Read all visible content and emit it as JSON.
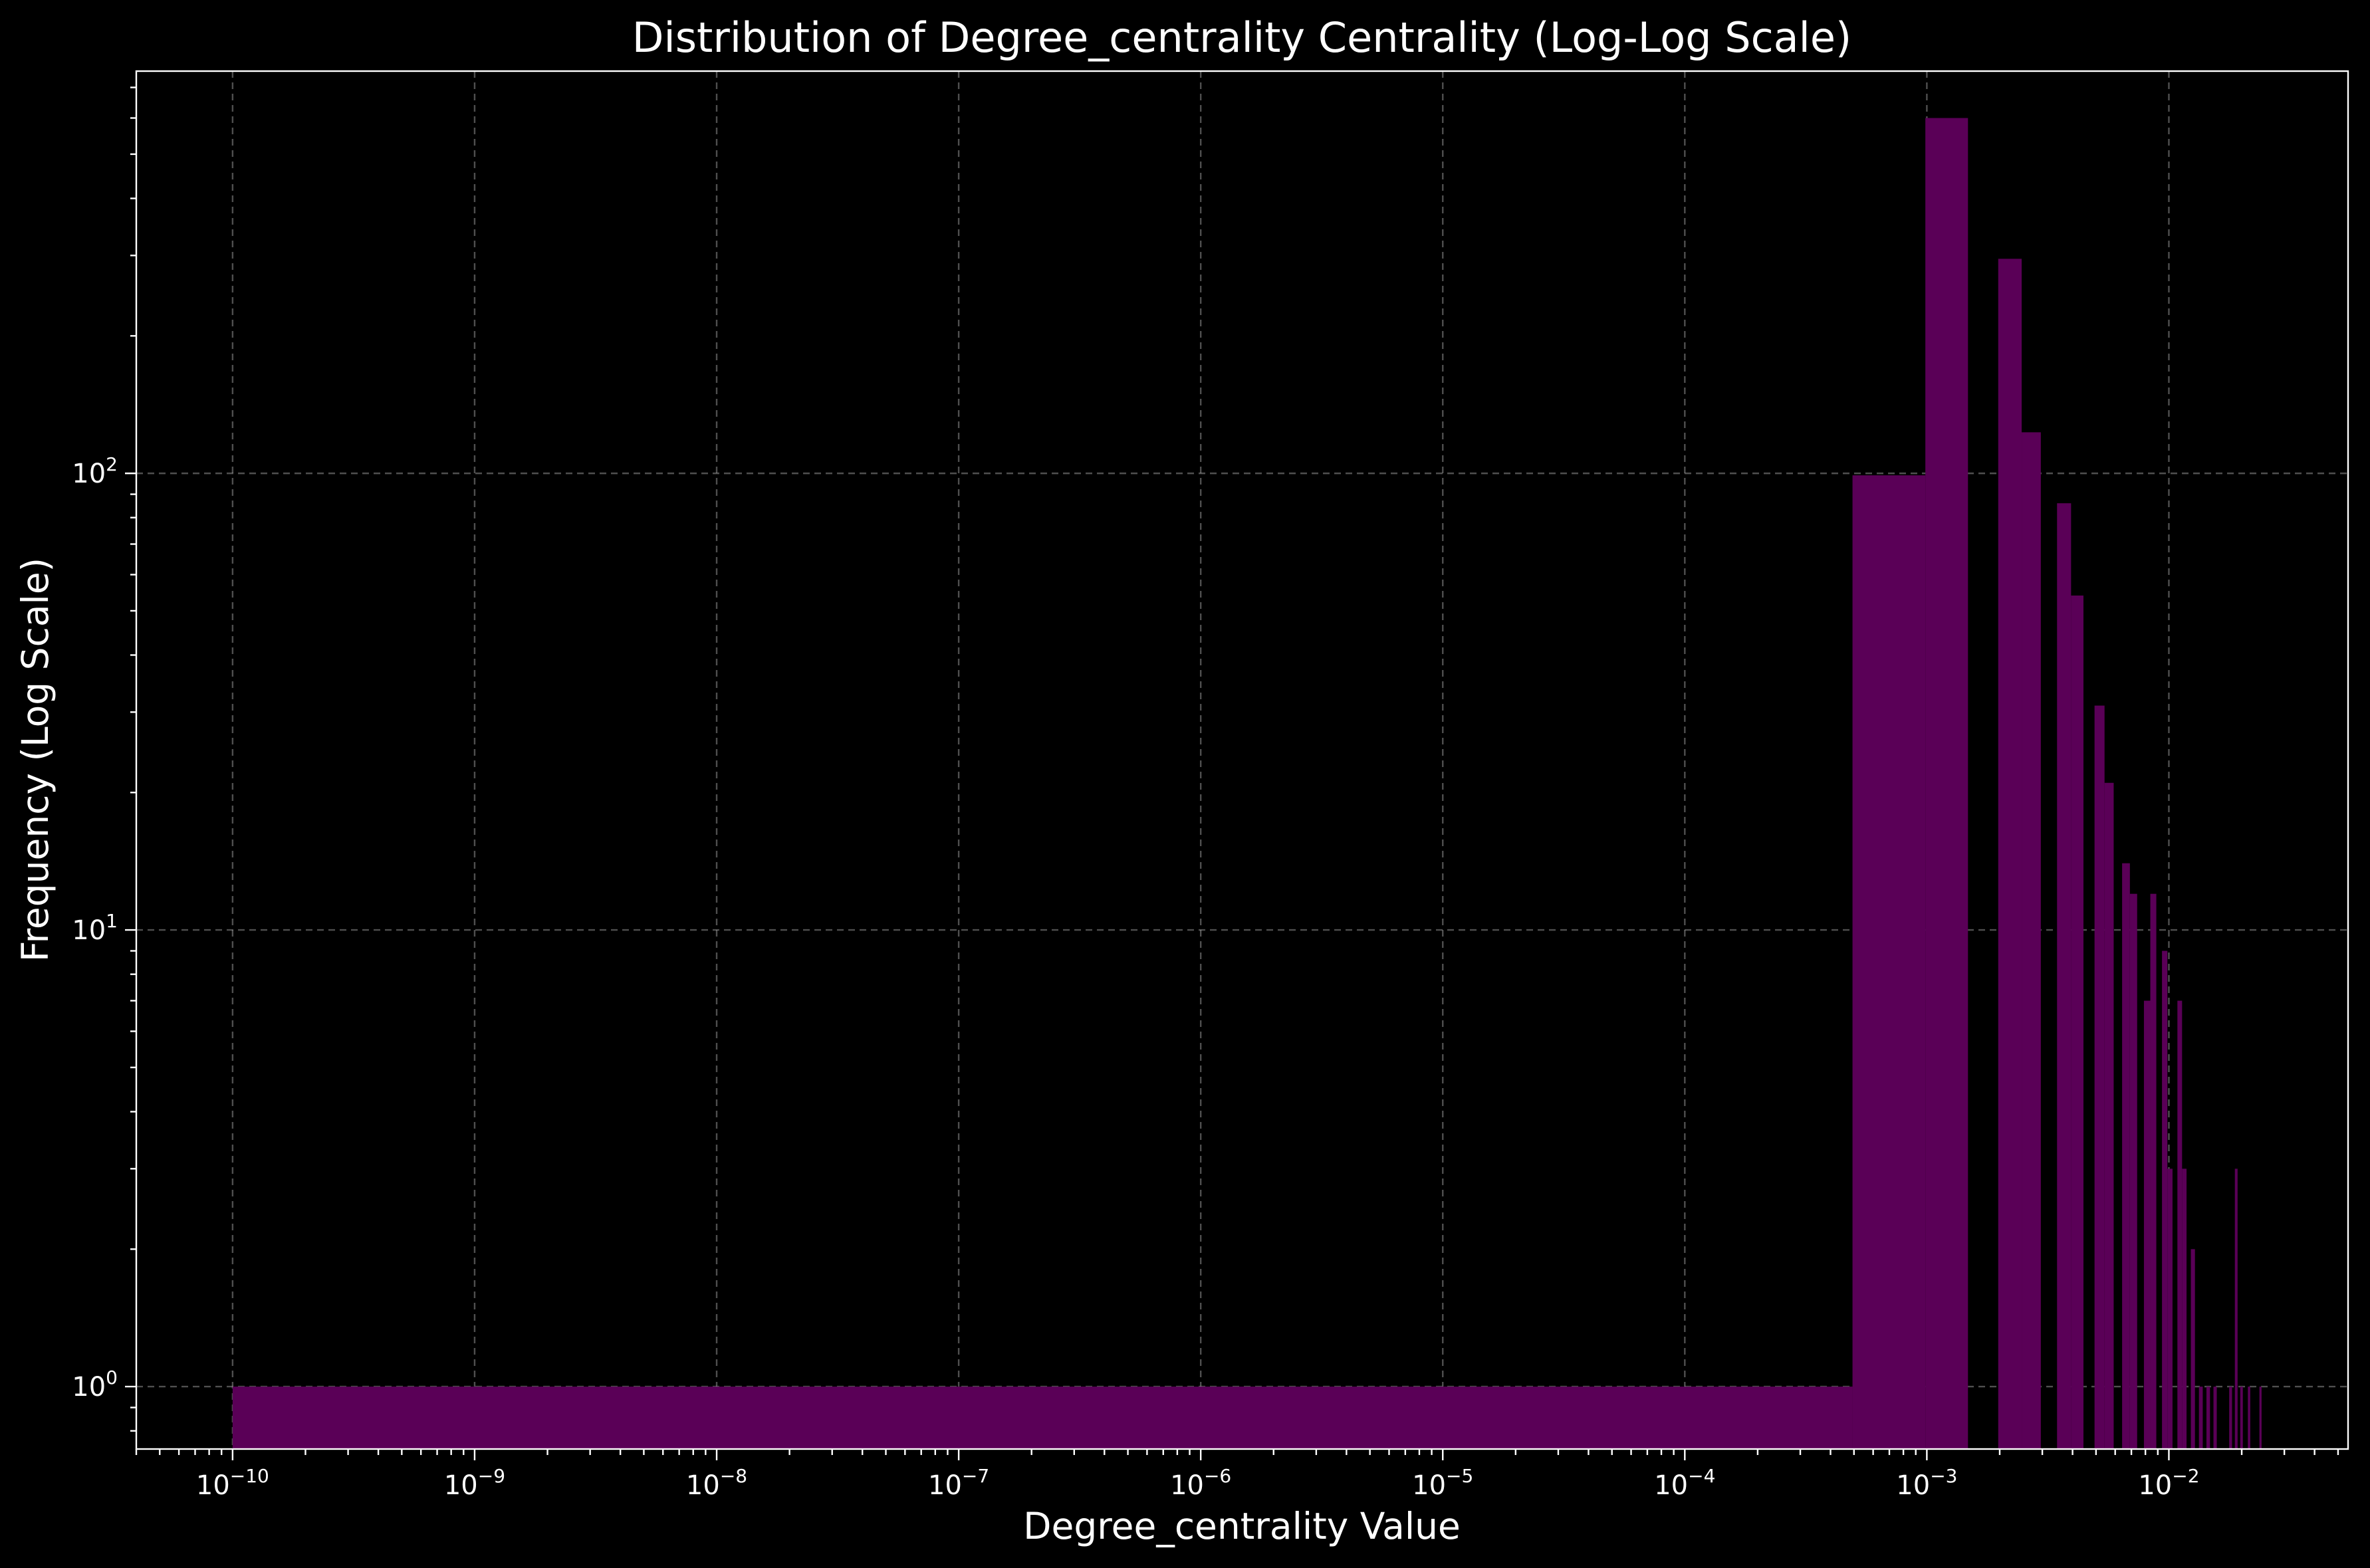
{
  "chart_data": {
    "type": "bar",
    "title": "Distribution of Degree_centrality Centrality (Log-Log Scale)",
    "xlabel": "Degree_centrality Value",
    "ylabel": "Frequency (Log Scale)",
    "x_scale": "log",
    "y_scale": "log",
    "xlim": [
      4e-11,
      0.055
    ],
    "ylim": [
      0.73,
      760
    ],
    "grid": true,
    "x_ticks": [
      {
        "value": 1e-10,
        "base": "10",
        "exp": "−10"
      },
      {
        "value": 1e-09,
        "base": "10",
        "exp": "−9"
      },
      {
        "value": 1e-08,
        "base": "10",
        "exp": "−8"
      },
      {
        "value": 1e-07,
        "base": "10",
        "exp": "−7"
      },
      {
        "value": 1e-06,
        "base": "10",
        "exp": "−6"
      },
      {
        "value": 1e-05,
        "base": "10",
        "exp": "−5"
      },
      {
        "value": 0.0001,
        "base": "10",
        "exp": "−4"
      },
      {
        "value": 0.001,
        "base": "10",
        "exp": "−3"
      },
      {
        "value": 0.01,
        "base": "10",
        "exp": "−2"
      }
    ],
    "y_ticks": [
      {
        "value": 1,
        "base": "10",
        "exp": "0"
      },
      {
        "value": 10,
        "base": "10",
        "exp": "1"
      },
      {
        "value": 100,
        "base": "10",
        "exp": "2"
      }
    ],
    "bar_color": "#5a0057",
    "bins": [
      {
        "x0": 1e-10,
        "x1": 0.000493,
        "count": 1
      },
      {
        "x0": 0.000493,
        "x1": 0.000986,
        "count": 99
      },
      {
        "x0": 0.000986,
        "x1": 0.001479,
        "count": 600
      },
      {
        "x0": 0.001972,
        "x1": 0.002465,
        "count": 295
      },
      {
        "x0": 0.002465,
        "x1": 0.002958,
        "count": 123
      },
      {
        "x0": 0.003451,
        "x1": 0.003944,
        "count": 86
      },
      {
        "x0": 0.003944,
        "x1": 0.004437,
        "count": 54
      },
      {
        "x0": 0.00493,
        "x1": 0.005423,
        "count": 31
      },
      {
        "x0": 0.005423,
        "x1": 0.005916,
        "count": 21
      },
      {
        "x0": 0.006409,
        "x1": 0.006902,
        "count": 14
      },
      {
        "x0": 0.006902,
        "x1": 0.007395,
        "count": 12
      },
      {
        "x0": 0.007888,
        "x1": 0.008381,
        "count": 7
      },
      {
        "x0": 0.008381,
        "x1": 0.008874,
        "count": 12
      },
      {
        "x0": 0.009367,
        "x1": 0.00986,
        "count": 9
      },
      {
        "x0": 0.00986,
        "x1": 0.010353,
        "count": 3
      },
      {
        "x0": 0.010846,
        "x1": 0.011339,
        "count": 7
      },
      {
        "x0": 0.011339,
        "x1": 0.011832,
        "count": 3
      },
      {
        "x0": 0.012325,
        "x1": 0.012818,
        "count": 2
      },
      {
        "x0": 0.013311,
        "x1": 0.013804,
        "count": 1
      },
      {
        "x0": 0.014297,
        "x1": 0.01479,
        "count": 1
      },
      {
        "x0": 0.015283,
        "x1": 0.015776,
        "count": 1
      },
      {
        "x0": 0.017748,
        "x1": 0.018241,
        "count": 1
      },
      {
        "x0": 0.018734,
        "x1": 0.019227,
        "count": 3
      },
      {
        "x0": 0.01972,
        "x1": 0.020213,
        "count": 1
      },
      {
        "x0": 0.021199,
        "x1": 0.021692,
        "count": 1
      },
      {
        "x0": 0.023664,
        "x1": 0.024157,
        "count": 1
      }
    ]
  }
}
